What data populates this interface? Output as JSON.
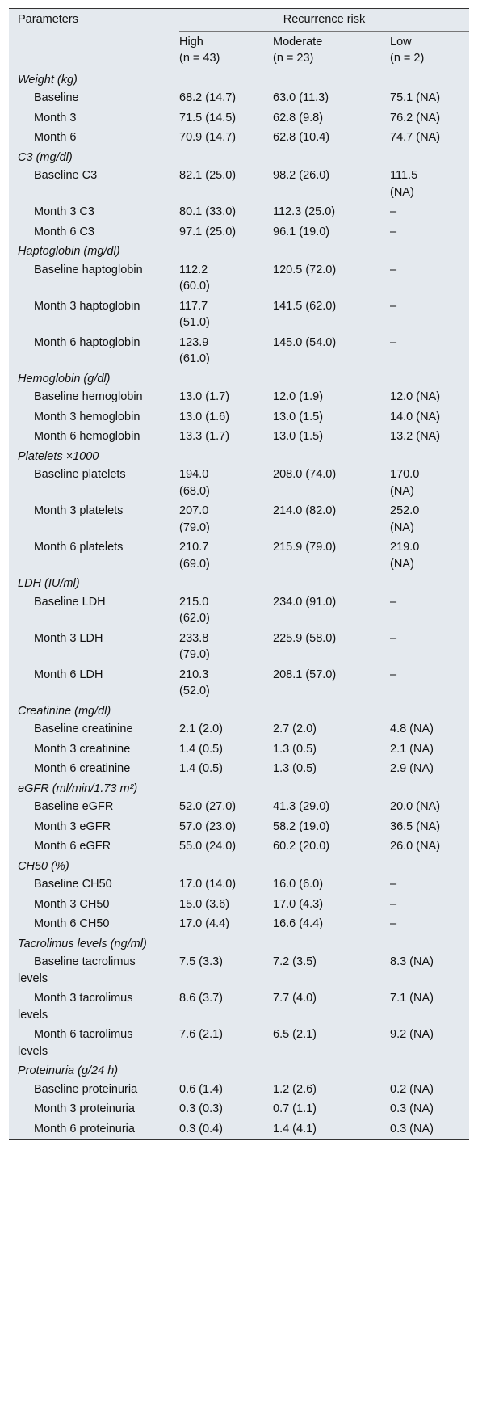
{
  "header": {
    "parameters": "Parameters",
    "recurrence_risk": "Recurrence risk",
    "columns": [
      {
        "label": "High",
        "n": "(n = 43)"
      },
      {
        "label": "Moderate",
        "n": "(n = 23)"
      },
      {
        "label": "Low",
        "n": "(n = 2)"
      }
    ]
  },
  "groups": [
    {
      "title": "Weight (kg)",
      "rows": [
        [
          "Baseline",
          "68.2 (14.7)",
          "63.0 (11.3)",
          "75.1 (NA)"
        ],
        [
          "Month 3",
          "71.5 (14.5)",
          "62.8 (9.8)",
          "76.2 (NA)"
        ],
        [
          "Month 6",
          "70.9 (14.7)",
          "62.8 (10.4)",
          "74.7 (NA)"
        ]
      ]
    },
    {
      "title": "C3 (mg/dl)",
      "rows": [
        [
          "Baseline C3",
          "82.1 (25.0)",
          "98.2 (26.0)",
          "111.5 (NA)"
        ],
        [
          "Month 3 C3",
          "80.1 (33.0)",
          "112.3 (25.0)",
          "–"
        ],
        [
          "Month 6 C3",
          "97.1 (25.0)",
          "96.1 (19.0)",
          "–"
        ]
      ]
    },
    {
      "title": "Haptoglobin (mg/dl)",
      "rows": [
        [
          "Baseline haptoglobin",
          "112.2 (60.0)",
          "120.5 (72.0)",
          "–"
        ],
        [
          "Month 3 haptoglobin",
          "117.7 (51.0)",
          "141.5 (62.0)",
          "–"
        ],
        [
          "Month 6 haptoglobin",
          "123.9 (61.0)",
          "145.0 (54.0)",
          "–"
        ]
      ]
    },
    {
      "title": "Hemoglobin (g/dl)",
      "rows": [
        [
          "Baseline hemoglobin",
          "13.0 (1.7)",
          "12.0 (1.9)",
          "12.0 (NA)"
        ],
        [
          "Month 3 hemoglobin",
          "13.0 (1.6)",
          "13.0 (1.5)",
          "14.0 (NA)"
        ],
        [
          "Month 6 hemoglobin",
          "13.3 (1.7)",
          "13.0 (1.5)",
          "13.2 (NA)"
        ]
      ]
    },
    {
      "title": "Platelets ×1000",
      "rows": [
        [
          "Baseline platelets",
          "194.0 (68.0)",
          "208.0 (74.0)",
          "170.0 (NA)"
        ],
        [
          "Month 3 platelets",
          "207.0 (79.0)",
          "214.0 (82.0)",
          "252.0 (NA)"
        ],
        [
          "Month 6 platelets",
          "210.7 (69.0)",
          "215.9 (79.0)",
          "219.0 (NA)"
        ]
      ]
    },
    {
      "title": "LDH (IU/ml)",
      "rows": [
        [
          "Baseline LDH",
          "215.0 (62.0)",
          "234.0 (91.0)",
          "–"
        ],
        [
          "Month 3 LDH",
          "233.8 (79.0)",
          "225.9 (58.0)",
          "–"
        ],
        [
          "Month 6 LDH",
          "210.3 (52.0)",
          "208.1 (57.0)",
          "–"
        ]
      ]
    },
    {
      "title": "Creatinine (mg/dl)",
      "rows": [
        [
          "Baseline creatinine",
          "2.1 (2.0)",
          "2.7 (2.0)",
          "4.8 (NA)"
        ],
        [
          "Month 3 creatinine",
          "1.4 (0.5)",
          "1.3 (0.5)",
          "2.1 (NA)"
        ],
        [
          "Month 6 creatinine",
          "1.4 (0.5)",
          "1.3 (0.5)",
          "2.9 (NA)"
        ]
      ]
    },
    {
      "title": "eGFR (ml/min/1.73 m²)",
      "rows": [
        [
          "Baseline eGFR",
          "52.0 (27.0)",
          "41.3 (29.0)",
          "20.0 (NA)"
        ],
        [
          "Month 3 eGFR",
          "57.0 (23.0)",
          "58.2 (19.0)",
          "36.5 (NA)"
        ],
        [
          "Month 6 eGFR",
          "55.0 (24.0)",
          "60.2 (20.0)",
          "26.0 (NA)"
        ]
      ]
    },
    {
      "title": "CH50 (%)",
      "rows": [
        [
          "Baseline CH50",
          "17.0 (14.0)",
          "16.0 (6.0)",
          "–"
        ],
        [
          "Month 3 CH50",
          "15.0 (3.6)",
          "17.0 (4.3)",
          "–"
        ],
        [
          "Month 6 CH50",
          "17.0 (4.4)",
          "16.6 (4.4)",
          "–"
        ]
      ]
    },
    {
      "title": "Tacrolimus levels (ng/ml)",
      "rows": [
        [
          "Baseline tacrolimus levels",
          "7.5 (3.3)",
          "7.2 (3.5)",
          "8.3 (NA)"
        ],
        [
          "Month 3 tacrolimus levels",
          "8.6 (3.7)",
          "7.7 (4.0)",
          "7.1 (NA)"
        ],
        [
          "Month 6 tacrolimus levels",
          "7.6 (2.1)",
          "6.5 (2.1)",
          "9.2 (NA)"
        ]
      ]
    },
    {
      "title": "Proteinuria (g/24 h)",
      "rows": [
        [
          "Baseline proteinuria",
          "0.6 (1.4)",
          "1.2 (2.6)",
          "0.2 (NA)"
        ],
        [
          "Month 3 proteinuria",
          "0.3 (0.3)",
          "0.7 (1.1)",
          "0.3 (NA)"
        ],
        [
          "Month 6 proteinuria",
          "0.3 (0.4)",
          "1.4 (4.1)",
          "0.3 (NA)"
        ]
      ]
    }
  ]
}
